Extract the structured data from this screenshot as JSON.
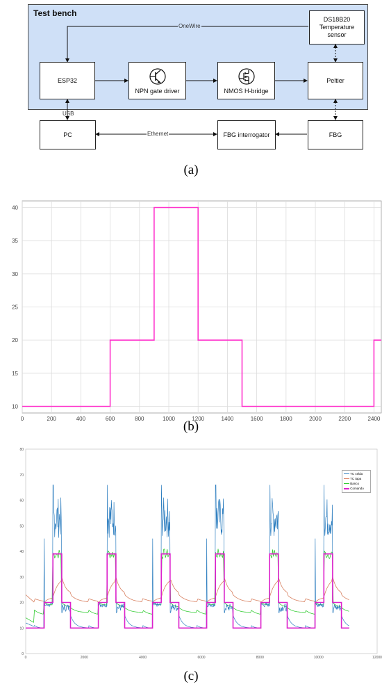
{
  "diagram": {
    "bench_title": "Test bench",
    "nodes": {
      "esp32": "ESP32",
      "npn": "NPN gate driver",
      "nmos": "NMOS H-bridge",
      "peltier": "Peltier",
      "ds18b20_line1": "DS18B20",
      "ds18b20_line2": "Temperature sensor",
      "pc": "PC",
      "fbg_interrogator": "FBG interrogator",
      "fbg": "FBG"
    },
    "edges": {
      "onewire": "OneWire",
      "usb": "USB",
      "ethernet": "Ethernet"
    },
    "caption": "(a)"
  },
  "chart_b": {
    "caption": "(b)"
  },
  "chart_c": {
    "caption": "(c)",
    "legend": [
      "TC celda",
      "TC tapa",
      "Banco",
      "Comando"
    ]
  },
  "chart_data": [
    {
      "type": "line",
      "xlim": [
        0,
        2450
      ],
      "ylim": [
        9,
        41
      ],
      "x_ticks": [
        0,
        200,
        400,
        600,
        800,
        1000,
        1200,
        1400,
        1600,
        1800,
        2000,
        2200,
        2400
      ],
      "y_ticks": [
        10,
        15,
        20,
        25,
        30,
        35,
        40
      ],
      "grid": true,
      "series": [
        {
          "color": "#ff33cc",
          "x": [
            0,
            600,
            600,
            900,
            900,
            1200,
            1200,
            1500,
            1500,
            2400,
            2400,
            2450
          ],
          "y": [
            10,
            10,
            20,
            20,
            40,
            40,
            20,
            20,
            10,
            10,
            20,
            20
          ]
        }
      ]
    },
    {
      "type": "line",
      "xlim": [
        0,
        12000
      ],
      "ylim": [
        0,
        80
      ],
      "x_ticks": [
        0,
        2000,
        4000,
        6000,
        8000,
        10000,
        12000
      ],
      "y_ticks": [
        0,
        10,
        20,
        30,
        40,
        50,
        60,
        70,
        80
      ],
      "grid": false,
      "legend_position": "top-right",
      "series": [
        {
          "name": "TC celda",
          "color": "#2f7fc0",
          "cycle_period": 1850,
          "cycles": 6
        },
        {
          "name": "TC tapa",
          "color": "#d88060",
          "cycle_period": 1850,
          "cycles": 6
        },
        {
          "name": "Banco",
          "color": "#33cc33",
          "cycle_period": 1850,
          "cycles": 6
        },
        {
          "name": "Comando",
          "color": "#dd22cc",
          "cycle_period": 1850,
          "cycles": 6
        }
      ]
    }
  ]
}
